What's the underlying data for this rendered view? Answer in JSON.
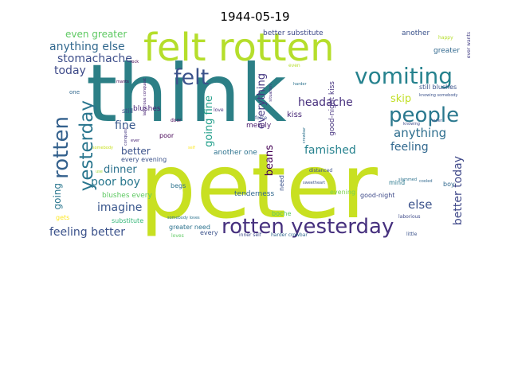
{
  "title": "1944-05-19",
  "words": [
    {
      "text": "think",
      "color": "#2c7f86"
    },
    {
      "text": "peter",
      "color": "#c8e021"
    },
    {
      "text": "felt rotten",
      "color": "#b5de2b"
    },
    {
      "text": "vomiting",
      "color": "#26828e"
    },
    {
      "text": "felt",
      "color": "#3b528b"
    },
    {
      "text": "people",
      "color": "#2a788e"
    },
    {
      "text": "rotten yesterday",
      "color": "#46307e"
    },
    {
      "text": "yesterday",
      "color": "#2a768e"
    },
    {
      "text": "rotten",
      "color": "#34618d"
    },
    {
      "text": "stomachache",
      "color": "#3d4e8a"
    },
    {
      "text": "anything else",
      "color": "#31688e"
    },
    {
      "text": "even greater",
      "color": "#5ec962"
    },
    {
      "text": "today",
      "color": "#3e4a89"
    },
    {
      "text": "headache",
      "color": "#472f7d"
    },
    {
      "text": "anything",
      "color": "#2e6e8e"
    },
    {
      "text": "feeling",
      "color": "#31688e"
    },
    {
      "text": "famished",
      "color": "#26828e"
    },
    {
      "text": "better today",
      "color": "#3f4889"
    },
    {
      "text": "else",
      "color": "#3b528b"
    },
    {
      "text": "skip",
      "color": "#c0df25"
    },
    {
      "text": "everything",
      "color": "#453882"
    },
    {
      "text": "going fine",
      "color": "#1f9e89"
    },
    {
      "text": "fine",
      "color": "#38588c"
    },
    {
      "text": "better",
      "color": "#3b528b"
    },
    {
      "text": "dinner",
      "color": "#2c728e"
    },
    {
      "text": "poor boy",
      "color": "#2a788e"
    },
    {
      "text": "imagine",
      "color": "#39568c"
    },
    {
      "text": "going",
      "color": "#2a768e"
    },
    {
      "text": "feeling better",
      "color": "#3b528b"
    },
    {
      "text": "beans",
      "color": "#440154"
    },
    {
      "text": "kiss",
      "color": "#482878"
    },
    {
      "text": "good-night kiss",
      "color": "#46337f"
    },
    {
      "text": "better substitute",
      "color": "#3e4a89"
    },
    {
      "text": "another",
      "color": "#3b528b"
    },
    {
      "text": "greater",
      "color": "#31688e"
    },
    {
      "text": "happy",
      "color": "#b5de2b"
    },
    {
      "text": "ever wants",
      "color": "#433e85"
    },
    {
      "text": "still blushes",
      "color": "#3b528b"
    },
    {
      "text": "blushes",
      "color": "#482475"
    },
    {
      "text": "still",
      "color": "#3e4a89"
    },
    {
      "text": "every evening",
      "color": "#3b528b"
    },
    {
      "text": "blushes every",
      "color": "#5ec962"
    },
    {
      "text": "substitute",
      "color": "#35b779"
    },
    {
      "text": "another one",
      "color": "#2c728e"
    },
    {
      "text": "merely",
      "color": "#481a6c"
    },
    {
      "text": "tenderness",
      "color": "#31688e"
    },
    {
      "text": "need",
      "color": "#3b528b"
    },
    {
      "text": "evening",
      "color": "#7ad151"
    },
    {
      "text": "good-night",
      "color": "#3e4a89"
    },
    {
      "text": "mind",
      "color": "#2a788e"
    },
    {
      "text": "boy",
      "color": "#31688e"
    },
    {
      "text": "begs",
      "color": "#2c728e"
    },
    {
      "text": "boche",
      "color": "#5ec962"
    },
    {
      "text": "greater need",
      "color": "#2c728e"
    },
    {
      "text": "every",
      "color": "#3b528b"
    },
    {
      "text": "gets",
      "color": "#fde725"
    },
    {
      "text": "poor",
      "color": "#440154"
    },
    {
      "text": "door",
      "color": "#440154"
    },
    {
      "text": "love",
      "color": "#46307e"
    },
    {
      "text": "force",
      "color": "#3b528b"
    },
    {
      "text": "even",
      "color": "#b5de2b"
    },
    {
      "text": "mants",
      "color": "#440154"
    },
    {
      "text": "one",
      "color": "#31688e"
    },
    {
      "text": "harder",
      "color": "#2c728e"
    },
    {
      "text": "situation",
      "color": "#46337f"
    },
    {
      "text": "laborious conquest",
      "color": "#482475"
    },
    {
      "text": "knowing somebody",
      "color": "#3b528b"
    },
    {
      "text": "knowing",
      "color": "#3e4a89"
    },
    {
      "text": "slammed",
      "color": "#2c728e"
    },
    {
      "text": "inner",
      "color": "#3b528b"
    },
    {
      "text": "lock",
      "color": "#440154"
    },
    {
      "text": "ever",
      "color": "#482475"
    },
    {
      "text": "conquest",
      "color": "#453882"
    },
    {
      "text": "somebody",
      "color": "#c8e021"
    },
    {
      "text": "self",
      "color": "#fde725"
    },
    {
      "text": "use",
      "color": "#a0da39"
    },
    {
      "text": "distanced",
      "color": "#3b528b"
    },
    {
      "text": "sweetheart",
      "color": "#3b528b"
    },
    {
      "text": "cooled",
      "color": "#31688e"
    },
    {
      "text": "crowbar",
      "color": "#2c728e"
    },
    {
      "text": "laborious",
      "color": "#3e4a89"
    },
    {
      "text": "little",
      "color": "#3b528b"
    },
    {
      "text": "somebody loves",
      "color": "#2c728e"
    },
    {
      "text": "loves",
      "color": "#5ec962"
    },
    {
      "text": "inner self",
      "color": "#3e4a89"
    },
    {
      "text": "harder crowbar",
      "color": "#31688e"
    }
  ]
}
